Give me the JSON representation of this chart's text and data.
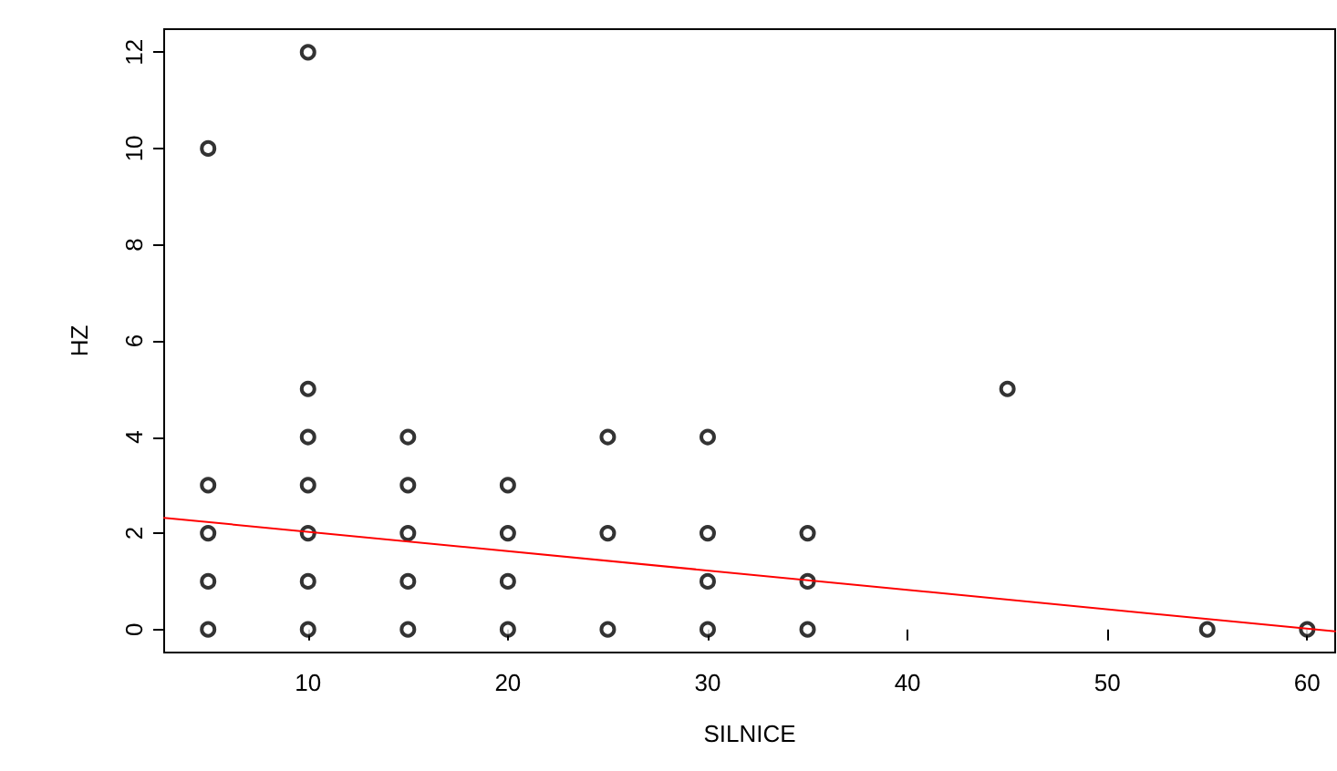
{
  "chart_data": {
    "type": "scatter",
    "xlabel": "SILNICE",
    "ylabel": "HZ",
    "xlim": [
      2.8,
      61.4
    ],
    "ylim": [
      -0.48,
      12.48
    ],
    "xticks": [
      10,
      20,
      30,
      40,
      50,
      60
    ],
    "yticks": [
      0,
      2,
      4,
      6,
      8,
      10,
      12
    ],
    "grid": false,
    "series": [
      {
        "marker": "circle",
        "color": "#000000",
        "x": [
          5,
          5,
          5,
          5,
          5,
          10,
          10,
          10,
          10,
          10,
          10,
          10,
          15,
          15,
          15,
          15,
          15,
          20,
          20,
          20,
          20,
          25,
          25,
          25,
          30,
          30,
          30,
          30,
          35,
          35,
          35,
          45,
          55,
          60
        ],
        "values": [
          0,
          1,
          2,
          3,
          10,
          0,
          1,
          2,
          3,
          4,
          5,
          12,
          0,
          1,
          2,
          3,
          4,
          0,
          1,
          2,
          3,
          0,
          2,
          4,
          0,
          1,
          2,
          4,
          0,
          1,
          2,
          5,
          0,
          0
        ]
      },
      {
        "type": "line",
        "marker": "none",
        "line_style": "solid",
        "color": "#ff0000",
        "x": [
          2.8,
          61.4
        ],
        "values": [
          2.32,
          -0.04
        ]
      }
    ]
  }
}
